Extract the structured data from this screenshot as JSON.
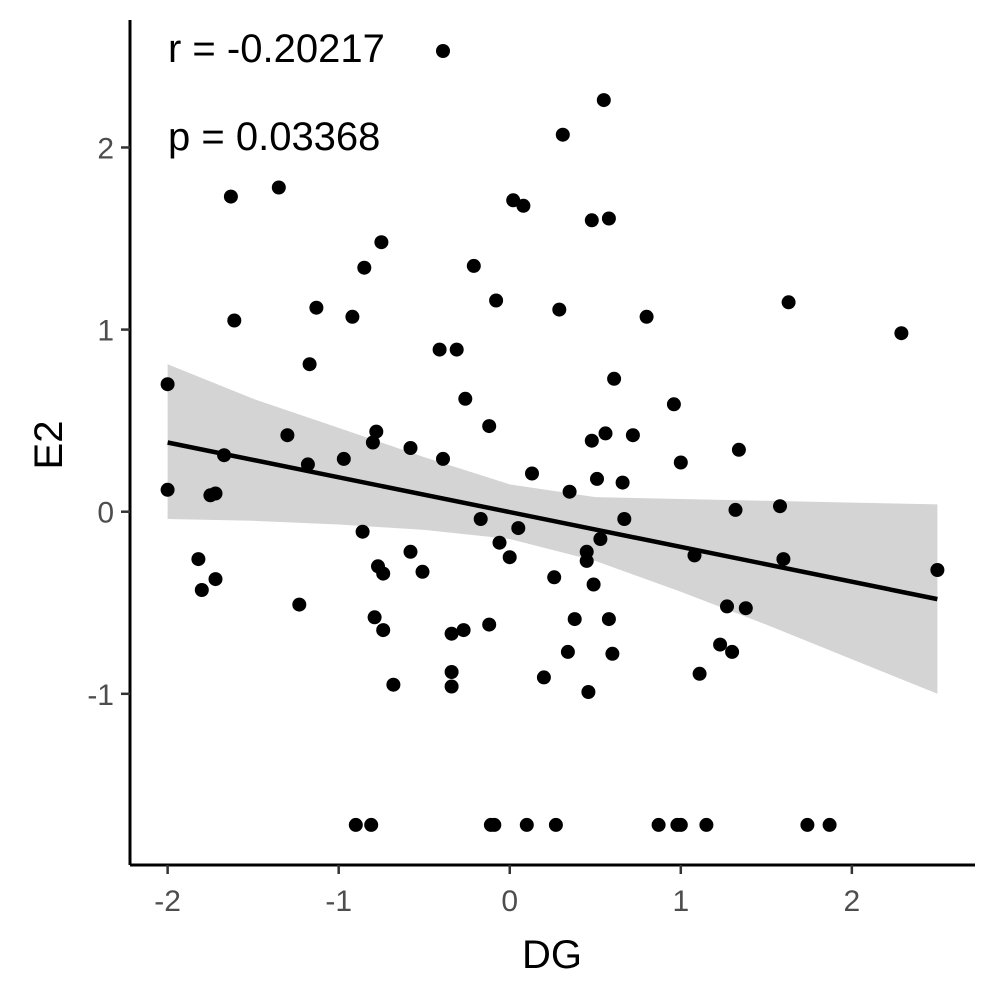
{
  "chart_data": {
    "type": "scatter",
    "xlabel": "DG",
    "ylabel": "E2",
    "xlim": [
      -2.22,
      2.72
    ],
    "ylim": [
      -1.94,
      2.7
    ],
    "x_ticks": [
      -2,
      -1,
      0,
      1,
      2
    ],
    "x_tick_labels": [
      "-2",
      "-1",
      "0",
      "1",
      "2"
    ],
    "y_ticks": [
      -1,
      0,
      1,
      2
    ],
    "y_tick_labels": [
      "-1",
      "0",
      "1",
      "2"
    ],
    "grid": false,
    "annotations": [
      "r = -0.20217",
      "p = 0.03368"
    ],
    "colors": {
      "point": "#000000",
      "line": "#000000",
      "band": "#d4d4d4",
      "axis": "#000000"
    },
    "regression": {
      "x": [
        -2.0,
        2.5
      ],
      "y": [
        0.38,
        -0.48
      ]
    },
    "confidence_band": {
      "x": [
        -2.0,
        -1.5,
        -1.0,
        -0.5,
        0.0,
        0.5,
        1.0,
        1.5,
        2.0,
        2.5
      ],
      "upper": [
        0.81,
        0.62,
        0.46,
        0.3,
        0.15,
        0.08,
        0.07,
        0.06,
        0.05,
        0.04
      ],
      "lower": [
        -0.04,
        -0.05,
        -0.07,
        -0.1,
        -0.15,
        -0.27,
        -0.44,
        -0.62,
        -0.81,
        -1.0
      ]
    },
    "points": [
      {
        "x": -2.0,
        "y": 0.7
      },
      {
        "x": -2.0,
        "y": 0.12
      },
      {
        "x": -1.82,
        "y": -0.26
      },
      {
        "x": -1.8,
        "y": -0.43
      },
      {
        "x": -1.75,
        "y": 0.09
      },
      {
        "x": -1.72,
        "y": 0.1
      },
      {
        "x": -1.72,
        "y": -0.37
      },
      {
        "x": -1.67,
        "y": 0.31
      },
      {
        "x": -1.63,
        "y": 1.73
      },
      {
        "x": -1.61,
        "y": 1.05
      },
      {
        "x": -1.35,
        "y": 1.78
      },
      {
        "x": -1.3,
        "y": 0.42
      },
      {
        "x": -1.23,
        "y": -0.51
      },
      {
        "x": -1.18,
        "y": 0.26
      },
      {
        "x": -1.17,
        "y": 0.81
      },
      {
        "x": -1.13,
        "y": 1.12
      },
      {
        "x": -0.97,
        "y": 0.29
      },
      {
        "x": -0.92,
        "y": 1.07
      },
      {
        "x": -0.9,
        "y": -1.72
      },
      {
        "x": -0.86,
        "y": -0.11
      },
      {
        "x": -0.85,
        "y": 1.34
      },
      {
        "x": -0.81,
        "y": -1.72
      },
      {
        "x": -0.8,
        "y": 0.38
      },
      {
        "x": -0.78,
        "y": 0.44
      },
      {
        "x": -0.79,
        "y": -0.58
      },
      {
        "x": -0.77,
        "y": -0.3
      },
      {
        "x": -0.75,
        "y": 1.48
      },
      {
        "x": -0.74,
        "y": -0.65
      },
      {
        "x": -0.74,
        "y": -0.34
      },
      {
        "x": -0.68,
        "y": -0.95
      },
      {
        "x": -0.58,
        "y": 0.35
      },
      {
        "x": -0.58,
        "y": -0.22
      },
      {
        "x": -0.51,
        "y": -0.33
      },
      {
        "x": -0.41,
        "y": 0.89
      },
      {
        "x": -0.39,
        "y": 0.29
      },
      {
        "x": -0.39,
        "y": 2.53
      },
      {
        "x": -0.34,
        "y": -0.67
      },
      {
        "x": -0.34,
        "y": -0.88
      },
      {
        "x": -0.34,
        "y": -0.96
      },
      {
        "x": -0.31,
        "y": 0.89
      },
      {
        "x": -0.27,
        "y": -0.65
      },
      {
        "x": -0.26,
        "y": 0.62
      },
      {
        "x": -0.21,
        "y": 1.35
      },
      {
        "x": -0.17,
        "y": -0.04
      },
      {
        "x": -0.12,
        "y": 0.47
      },
      {
        "x": -0.12,
        "y": -0.62
      },
      {
        "x": -0.11,
        "y": -1.72
      },
      {
        "x": -0.09,
        "y": -1.72
      },
      {
        "x": -0.08,
        "y": 1.16
      },
      {
        "x": -0.06,
        "y": -0.17
      },
      {
        "x": 0.0,
        "y": -0.25
      },
      {
        "x": 0.02,
        "y": 1.71
      },
      {
        "x": 0.05,
        "y": -0.09
      },
      {
        "x": 0.08,
        "y": 1.68
      },
      {
        "x": 0.1,
        "y": -1.72
      },
      {
        "x": 0.13,
        "y": 0.21
      },
      {
        "x": 0.2,
        "y": -0.91
      },
      {
        "x": 0.26,
        "y": -0.36
      },
      {
        "x": 0.27,
        "y": -1.72
      },
      {
        "x": 0.29,
        "y": 1.11
      },
      {
        "x": 0.31,
        "y": 2.07
      },
      {
        "x": 0.34,
        "y": -0.77
      },
      {
        "x": 0.35,
        "y": 0.11
      },
      {
        "x": 0.38,
        "y": -0.59
      },
      {
        "x": 0.45,
        "y": -0.22
      },
      {
        "x": 0.45,
        "y": -0.27
      },
      {
        "x": 0.46,
        "y": -0.99
      },
      {
        "x": 0.48,
        "y": 1.6
      },
      {
        "x": 0.48,
        "y": 0.39
      },
      {
        "x": 0.49,
        "y": -0.4
      },
      {
        "x": 0.51,
        "y": 0.18
      },
      {
        "x": 0.53,
        "y": -0.15
      },
      {
        "x": 0.55,
        "y": 2.26
      },
      {
        "x": 0.56,
        "y": 0.43
      },
      {
        "x": 0.58,
        "y": 1.61
      },
      {
        "x": 0.58,
        "y": -0.59
      },
      {
        "x": 0.6,
        "y": -0.78
      },
      {
        "x": 0.61,
        "y": 0.73
      },
      {
        "x": 0.66,
        "y": 0.16
      },
      {
        "x": 0.67,
        "y": -0.04
      },
      {
        "x": 0.72,
        "y": 0.42
      },
      {
        "x": 0.8,
        "y": 1.07
      },
      {
        "x": 0.87,
        "y": -1.72
      },
      {
        "x": 0.96,
        "y": 0.59
      },
      {
        "x": 0.98,
        "y": -1.72
      },
      {
        "x": 1.0,
        "y": -1.72
      },
      {
        "x": 1.0,
        "y": 0.27
      },
      {
        "x": 1.08,
        "y": -0.24
      },
      {
        "x": 1.11,
        "y": -0.89
      },
      {
        "x": 1.15,
        "y": -1.72
      },
      {
        "x": 1.23,
        "y": -0.73
      },
      {
        "x": 1.27,
        "y": -0.52
      },
      {
        "x": 1.3,
        "y": -0.77
      },
      {
        "x": 1.32,
        "y": 0.01
      },
      {
        "x": 1.34,
        "y": 0.34
      },
      {
        "x": 1.38,
        "y": -0.53
      },
      {
        "x": 1.58,
        "y": 0.03
      },
      {
        "x": 1.6,
        "y": -0.26
      },
      {
        "x": 1.63,
        "y": 1.15
      },
      {
        "x": 1.74,
        "y": -1.72
      },
      {
        "x": 1.87,
        "y": -1.72
      },
      {
        "x": 2.29,
        "y": 0.98
      },
      {
        "x": 2.5,
        "y": -0.32
      }
    ]
  }
}
